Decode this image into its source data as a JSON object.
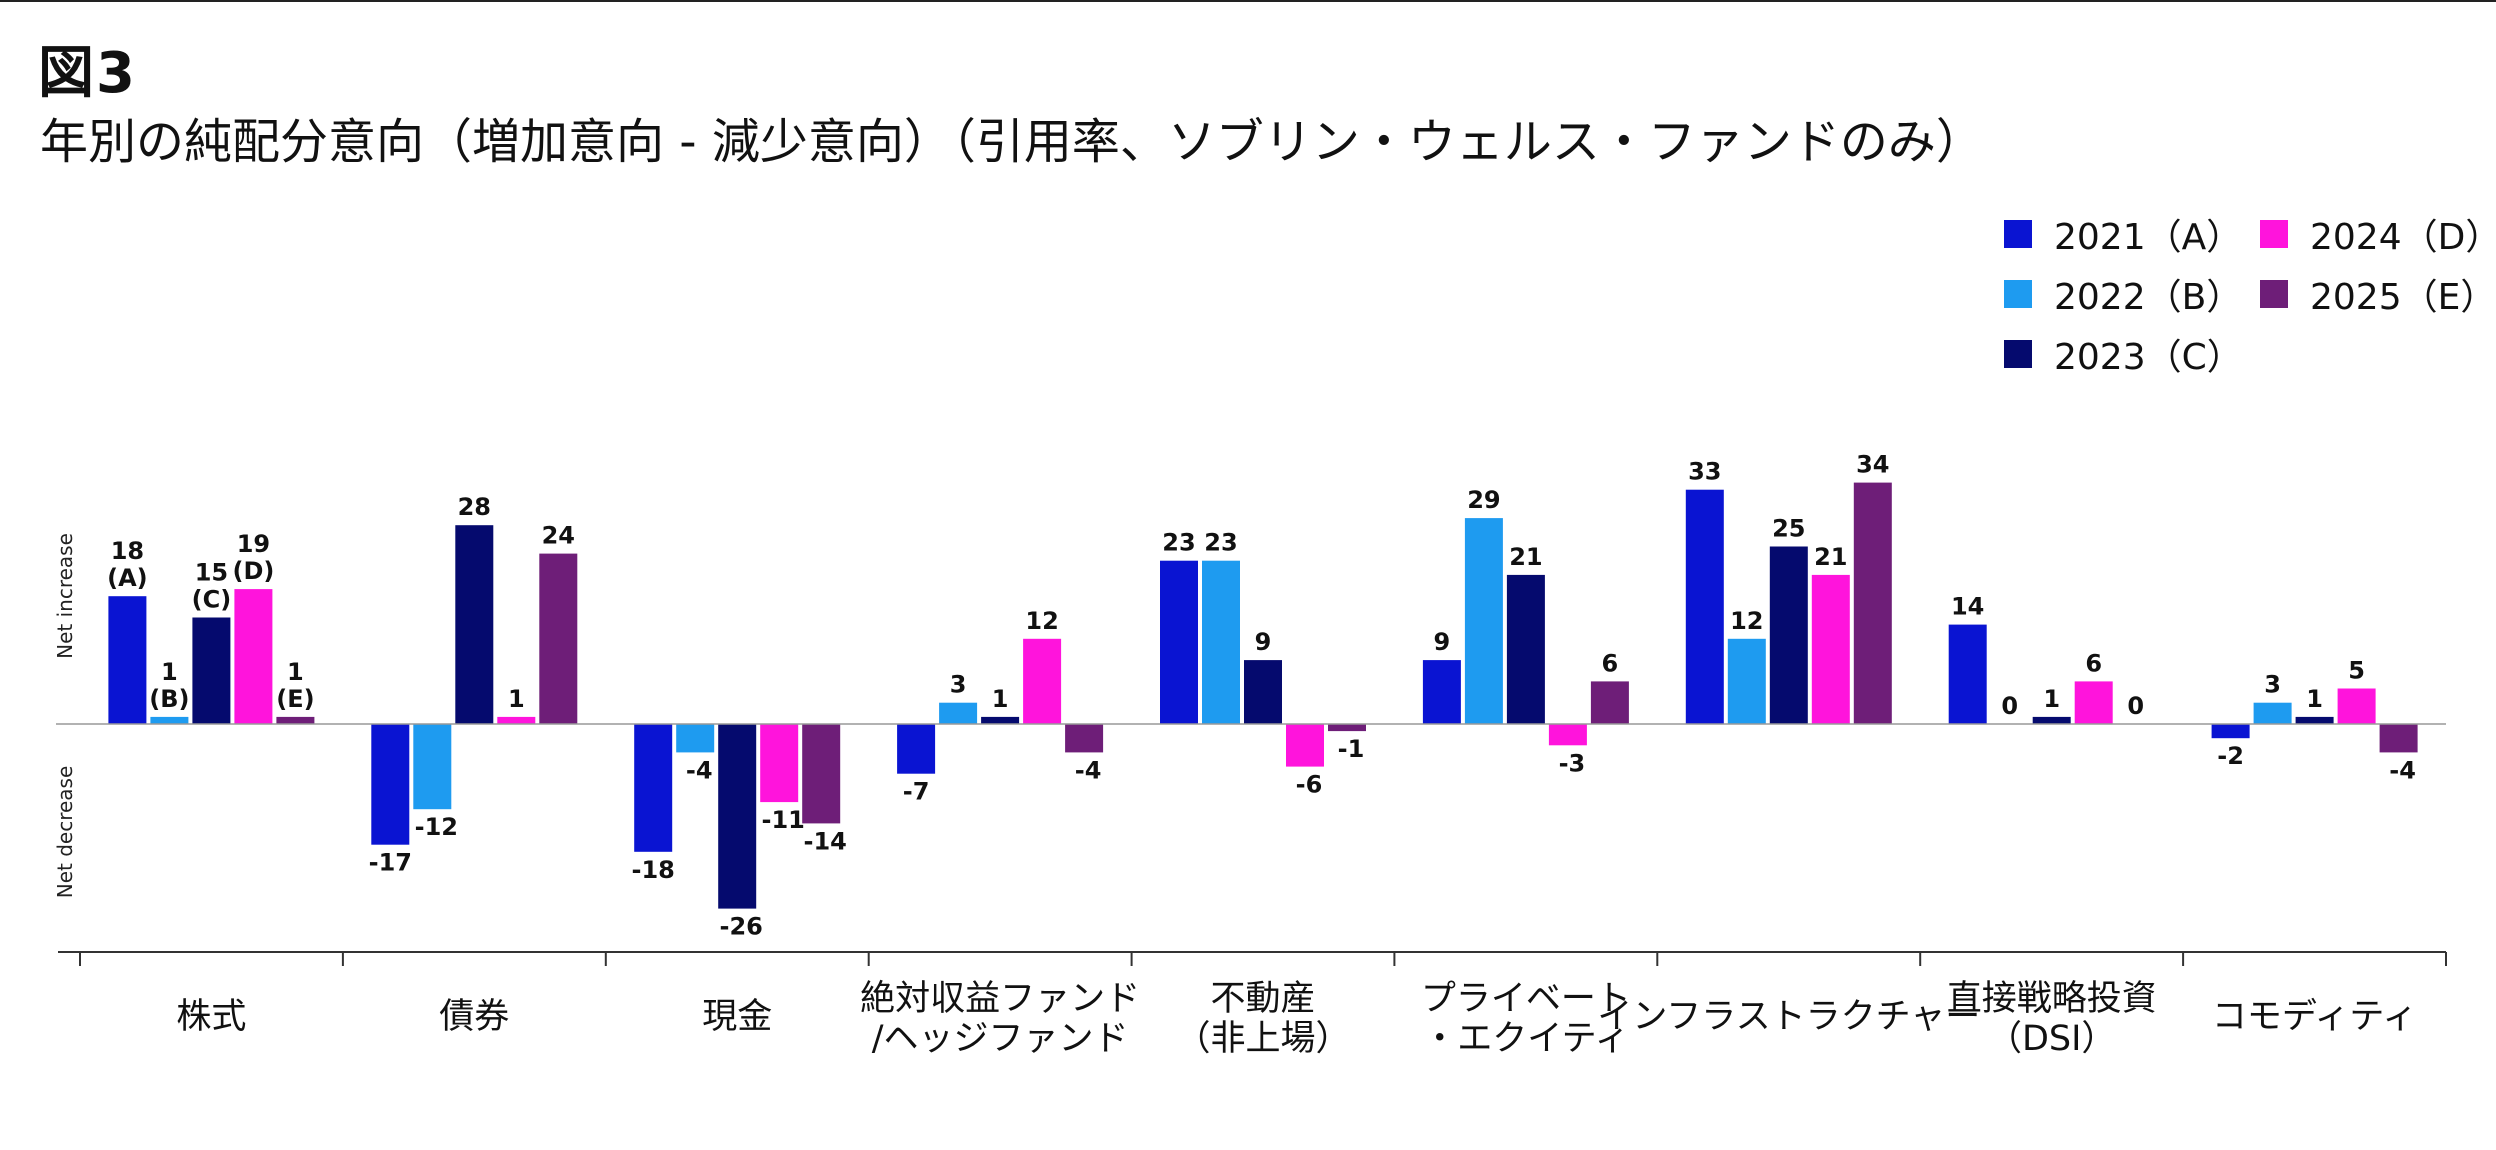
{
  "figure_label": "図3",
  "chart_title": "年別の純配分意向（増加意向 - 減少意向）（引用率、ソブリン・ウェルス・ファンドのみ）",
  "colors": {
    "s2021": "#0a14d2",
    "s2022": "#1e9bf0",
    "s2023": "#050a6e",
    "s2024": "#ff14dc",
    "s2025": "#6e1e78",
    "axis": "#333333",
    "text": "#111111"
  },
  "chart_data": {
    "type": "bar",
    "title": "年別の純配分意向（増加意向 - 減少意向）（引用率、ソブリン・ウェルス・ファンドのみ）",
    "ylabel_positive": "Net increase",
    "ylabel_negative": "Net decrease",
    "ylim": [
      -31,
      38
    ],
    "grid": false,
    "legend_position": "top-right",
    "categories": [
      [
        "株式"
      ],
      [
        "債券"
      ],
      [
        "現金"
      ],
      [
        "絶対収益ファンド",
        "/ヘッジファンド"
      ],
      [
        "不動産",
        "（非上場）"
      ],
      [
        "プライベート",
        "・エクイティ"
      ],
      [
        "インフラストラクチャー"
      ],
      [
        "直接戦略投資",
        "（DSI）"
      ],
      [
        "コモディティ"
      ]
    ],
    "series": [
      {
        "name": "2021（A）",
        "tag": "(A)",
        "values": [
          18,
          -17,
          -18,
          -7,
          23,
          9,
          33,
          14,
          -2
        ]
      },
      {
        "name": "2022（B）",
        "tag": "(B)",
        "values": [
          1,
          -12,
          -4,
          3,
          23,
          29,
          12,
          0,
          3
        ]
      },
      {
        "name": "2023（C）",
        "tag": "(C)",
        "values": [
          15,
          28,
          -26,
          1,
          9,
          21,
          25,
          1,
          1
        ]
      },
      {
        "name": "2024（D）",
        "tag": "(D)",
        "values": [
          19,
          1,
          -11,
          12,
          -6,
          -3,
          21,
          6,
          5
        ]
      },
      {
        "name": "2025（E）",
        "tag": "(E)",
        "values": [
          1,
          24,
          -14,
          -4,
          -1,
          6,
          34,
          0,
          -4
        ]
      }
    ]
  }
}
